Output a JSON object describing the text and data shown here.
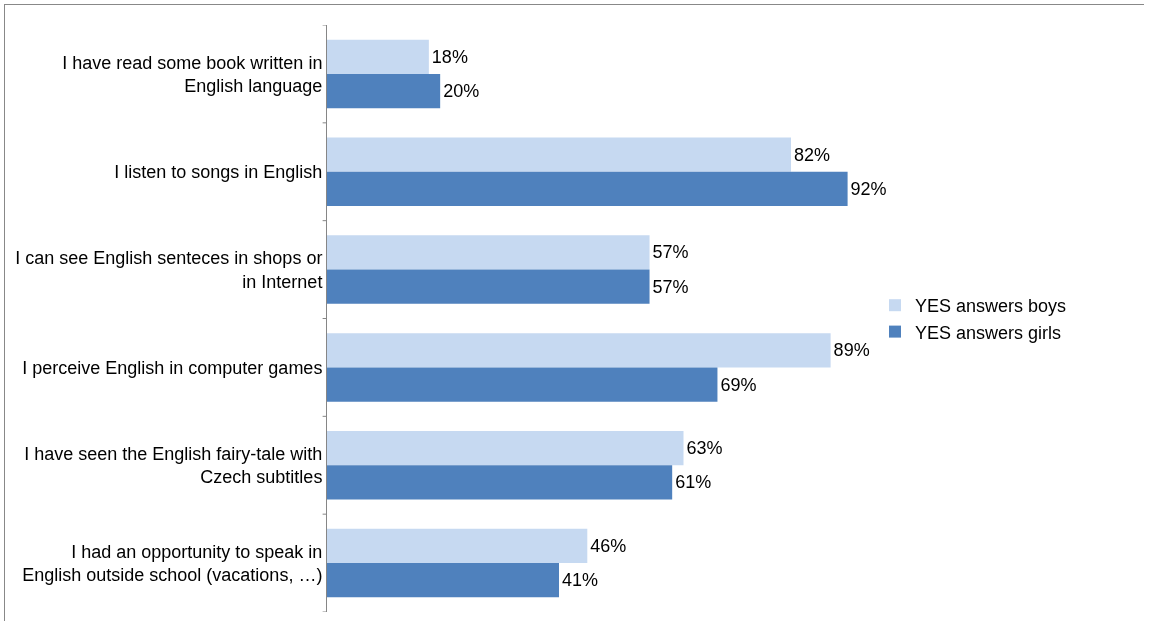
{
  "chart_data": {
    "type": "bar",
    "orientation": "horizontal",
    "categories": [
      "I have read some book written in English language",
      "I listen to songs in English",
      "I can see English senteces in shops or in Internet",
      "I perceive English in computer games",
      "I have seen the English fairy-tale with Czech subtitles",
      "I had an opportunity to speak in English outside school (vacations, …)"
    ],
    "series": [
      {
        "name": "YES answers boys",
        "color": "#c6d9f1",
        "values": [
          18,
          82,
          57,
          89,
          63,
          46
        ],
        "value_labels": [
          "18%",
          "82%",
          "57%",
          "89%",
          "63%",
          "46%"
        ]
      },
      {
        "name": "YES answers girls",
        "color": "#4f81bd",
        "values": [
          20,
          92,
          57,
          69,
          61,
          41
        ],
        "value_labels": [
          "20%",
          "92%",
          "57%",
          "69%",
          "61%",
          "41%"
        ]
      }
    ],
    "legend": "right"
  }
}
